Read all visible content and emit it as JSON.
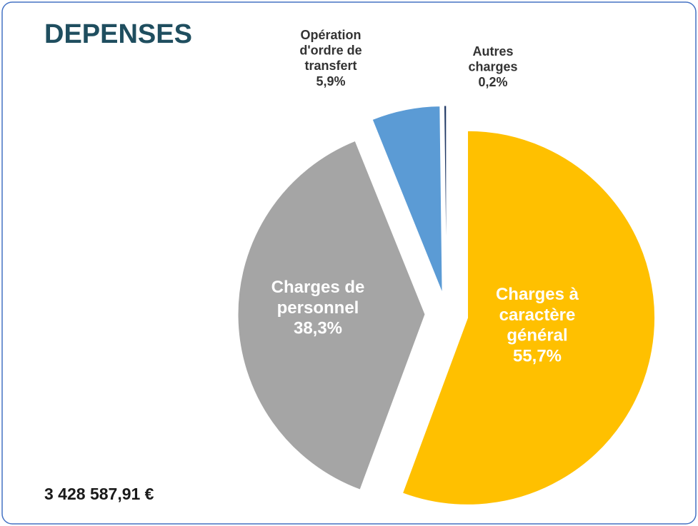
{
  "title": "DEPENSES",
  "total": "3 428 587,91 €",
  "chart_data": {
    "type": "pie",
    "categories": [
      "Charges à caractère général",
      "Charges de personnel",
      "Opération d'ordre de transfert",
      "Autres charges"
    ],
    "values": [
      55.7,
      38.3,
      5.9,
      0.2
    ],
    "value_labels": [
      "55,7%",
      "38,3%",
      "5,9%",
      "0,2%"
    ],
    "colors": [
      "#ffc000",
      "#a5a5a5",
      "#5b9bd5",
      "#1f3864"
    ]
  }
}
